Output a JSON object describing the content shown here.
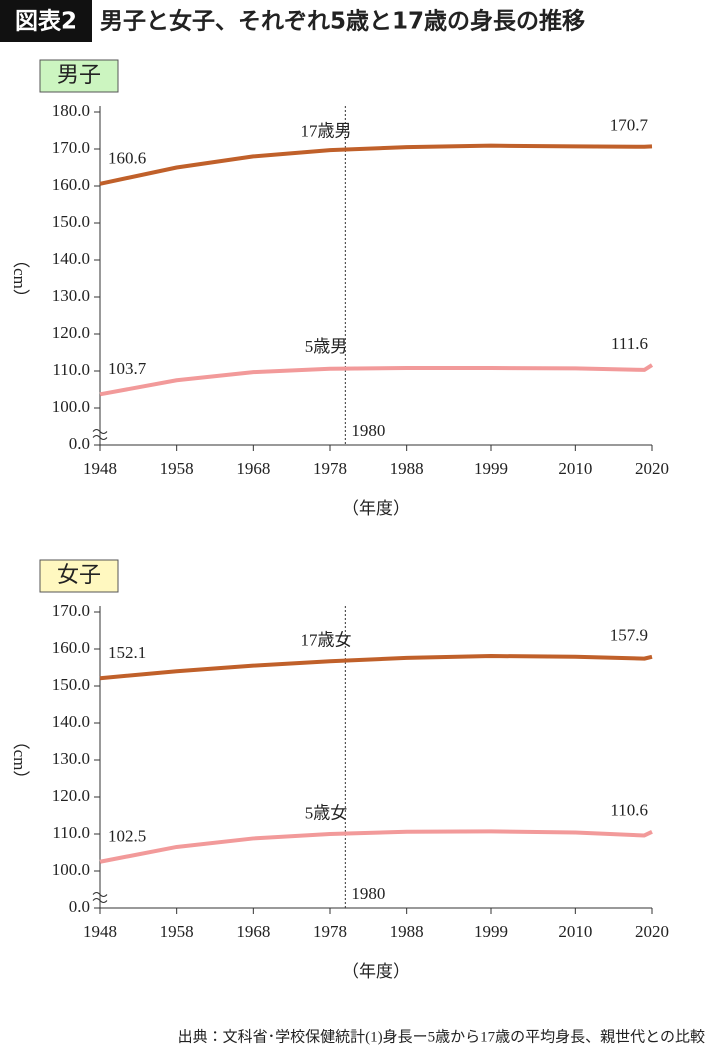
{
  "header": {
    "badge": "図表2",
    "title": "男子と女子、それぞれ5歳と17歳の身長の推移"
  },
  "chart_data": [
    {
      "type": "line",
      "title": "男子",
      "title_color": "#ccf5c0",
      "y_label": "（cm）",
      "x_label": "（年度）",
      "x": [
        1948,
        1958,
        1968,
        1978,
        1988,
        1999,
        2010,
        2019,
        2020
      ],
      "xlim": [
        1948,
        2020
      ],
      "xticks": [
        1948,
        1958,
        1968,
        1978,
        1988,
        1999,
        2010,
        2020
      ],
      "ylim": [
        0,
        180
      ],
      "y_break": true,
      "yticks": [
        {
          "value": 0,
          "label": "0.0"
        },
        {
          "value": 100,
          "label": "100.0"
        },
        {
          "value": 110,
          "label": "110.0"
        },
        {
          "value": 120,
          "label": "120.0"
        },
        {
          "value": 130,
          "label": "130.0"
        },
        {
          "value": 140,
          "label": "140.0"
        },
        {
          "value": 150,
          "label": "150.0"
        },
        {
          "value": 160,
          "label": "160.0"
        },
        {
          "value": 170,
          "label": "170.0"
        },
        {
          "value": 180,
          "label": "180.0"
        }
      ],
      "vline": 1980,
      "data_labels": "ends",
      "series": [
        {
          "name": "17歳男",
          "color": "#c0602a",
          "values": [
            160.6,
            165.0,
            168.0,
            169.7,
            170.5,
            170.9,
            170.7,
            170.6,
            170.7
          ]
        },
        {
          "name": "5歳男",
          "color": "#f29a9a",
          "values": [
            103.7,
            107.5,
            109.7,
            110.6,
            110.8,
            110.8,
            110.7,
            110.3,
            111.6
          ]
        }
      ]
    },
    {
      "type": "line",
      "title": "女子",
      "title_color": "#fff8c0",
      "y_label": "（cm）",
      "x_label": "（年度）",
      "x": [
        1948,
        1958,
        1968,
        1978,
        1988,
        1999,
        2010,
        2019,
        2020
      ],
      "xlim": [
        1948,
        2020
      ],
      "xticks": [
        1948,
        1958,
        1968,
        1978,
        1988,
        1999,
        2010,
        2020
      ],
      "ylim": [
        0,
        170
      ],
      "y_break": true,
      "yticks": [
        {
          "value": 0,
          "label": "0.0"
        },
        {
          "value": 100,
          "label": "100.0"
        },
        {
          "value": 110,
          "label": "110.0"
        },
        {
          "value": 120,
          "label": "120.0"
        },
        {
          "value": 130,
          "label": "130.0"
        },
        {
          "value": 140,
          "label": "140.0"
        },
        {
          "value": 150,
          "label": "150.0"
        },
        {
          "value": 160,
          "label": "160.0"
        },
        {
          "value": 170,
          "label": "170.0"
        }
      ],
      "vline": 1980,
      "data_labels": "ends",
      "series": [
        {
          "name": "17歳女",
          "color": "#c0602a",
          "values": [
            152.1,
            154.0,
            155.5,
            156.7,
            157.6,
            158.1,
            157.9,
            157.4,
            157.9
          ]
        },
        {
          "name": "5歳女",
          "color": "#f29a9a",
          "values": [
            102.5,
            106.5,
            108.8,
            110.0,
            110.6,
            110.7,
            110.4,
            109.6,
            110.6
          ]
        }
      ]
    }
  ],
  "source": "出典：文科省･学校保健統計(1)身長ー5歳から17歳の平均身長、親世代との比較"
}
